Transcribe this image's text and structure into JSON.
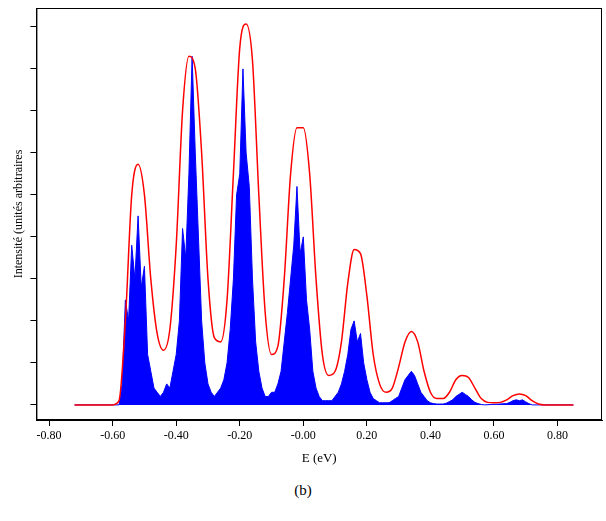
{
  "chart_data": {
    "type": "line",
    "x_label": "E (eV)",
    "y_label": "Intensité (unités arbitraires",
    "caption": "(b)",
    "xlim": [
      -0.84,
      0.94
    ],
    "xticks": [
      {
        "value": -0.8,
        "label": "-0.80"
      },
      {
        "value": -0.6,
        "label": "-0.60"
      },
      {
        "value": -0.4,
        "label": "-0.40"
      },
      {
        "value": -0.2,
        "label": "-0.20"
      },
      {
        "value": 0,
        "label": "-0.00"
      },
      {
        "value": 0.2,
        "label": "0.20"
      },
      {
        "value": 0.4,
        "label": "0.40"
      },
      {
        "value": 0.6,
        "label": "0.60"
      },
      {
        "value": 0.8,
        "label": "0.80"
      }
    ],
    "ylim": [
      -0.036,
      0.945
    ],
    "yticks": [
      0,
      0.1,
      0.2,
      0.3,
      0.4,
      0.5,
      0.6,
      0.7,
      0.8,
      0.9
    ],
    "tick_labels": "x",
    "grid": false,
    "series": [
      {
        "type": "area",
        "color": "#0000ff",
        "x": [
          -0.72,
          -0.58,
          -0.57,
          -0.56,
          -0.55,
          -0.54,
          -0.53,
          -0.52,
          -0.51,
          -0.5,
          -0.49,
          -0.48,
          -0.47,
          -0.46,
          -0.45,
          -0.44,
          -0.43,
          -0.42,
          -0.41,
          -0.4,
          -0.39,
          -0.38,
          -0.37,
          -0.36,
          -0.35,
          -0.34,
          -0.33,
          -0.32,
          -0.31,
          -0.3,
          -0.29,
          -0.28,
          -0.27,
          -0.26,
          -0.25,
          -0.24,
          -0.23,
          -0.22,
          -0.21,
          -0.2,
          -0.19,
          -0.18,
          -0.17,
          -0.16,
          -0.15,
          -0.14,
          -0.13,
          -0.12,
          -0.11,
          -0.1,
          -0.09,
          -0.08,
          -0.07,
          -0.06,
          -0.05,
          -0.04,
          -0.03,
          -0.02,
          -0.01,
          0,
          0.01,
          0.02,
          0.03,
          0.04,
          0.05,
          0.06,
          0.07,
          0.08,
          0.09,
          0.1,
          0.11,
          0.12,
          0.13,
          0.14,
          0.15,
          0.16,
          0.17,
          0.18,
          0.19,
          0.2,
          0.21,
          0.22,
          0.23,
          0.24,
          0.25,
          0.26,
          0.27,
          0.28,
          0.29,
          0.3,
          0.31,
          0.32,
          0.33,
          0.34,
          0.35,
          0.36,
          0.37,
          0.38,
          0.39,
          0.4,
          0.41,
          0.42,
          0.43,
          0.44,
          0.45,
          0.46,
          0.47,
          0.48,
          0.49,
          0.5,
          0.51,
          0.52,
          0.53,
          0.54,
          0.55,
          0.56,
          0.57,
          0.64,
          0.65,
          0.66,
          0.67,
          0.68,
          0.69,
          0.7,
          0.71,
          0.72,
          0.85
        ],
        "values": [
          0,
          0,
          0.05,
          0.25,
          0.2,
          0.38,
          0.3,
          0.45,
          0.28,
          0.33,
          0.12,
          0.08,
          0.04,
          0.03,
          0.02,
          0.03,
          0.05,
          0.04,
          0.08,
          0.12,
          0.2,
          0.42,
          0.35,
          0.55,
          0.83,
          0.6,
          0.4,
          0.2,
          0.1,
          0.05,
          0.03,
          0.02,
          0.03,
          0.04,
          0.06,
          0.1,
          0.18,
          0.3,
          0.5,
          0.55,
          0.8,
          0.6,
          0.52,
          0.3,
          0.15,
          0.08,
          0.04,
          0.02,
          0.02,
          0.03,
          0.03,
          0.05,
          0.08,
          0.15,
          0.22,
          0.3,
          0.38,
          0.52,
          0.36,
          0.4,
          0.25,
          0.18,
          0.08,
          0.04,
          0.02,
          0.01,
          0.01,
          0.01,
          0.01,
          0.02,
          0.03,
          0.05,
          0.08,
          0.12,
          0.18,
          0.2,
          0.15,
          0.17,
          0.1,
          0.06,
          0.03,
          0.015,
          0.01,
          0.005,
          0.005,
          0.005,
          0.005,
          0.01,
          0.015,
          0.02,
          0.04,
          0.06,
          0.07,
          0.08,
          0.07,
          0.05,
          0.03,
          0.02,
          0.01,
          0.005,
          0.003,
          0.002,
          0.002,
          0.002,
          0.004,
          0.008,
          0.012,
          0.02,
          0.025,
          0.03,
          0.025,
          0.02,
          0.012,
          0.006,
          0.003,
          0.001,
          0,
          0.003,
          0.006,
          0.01,
          0.012,
          0.01,
          0.012,
          0.007,
          0.003,
          0,
          0
        ]
      },
      {
        "type": "line",
        "color": "#ff0000",
        "x": [
          -0.72,
          -0.6,
          -0.58,
          -0.56,
          -0.54,
          -0.52,
          -0.5,
          -0.48,
          -0.46,
          -0.44,
          -0.42,
          -0.4,
          -0.38,
          -0.36,
          -0.34,
          -0.32,
          -0.3,
          -0.28,
          -0.26,
          -0.24,
          -0.22,
          -0.2,
          -0.18,
          -0.16,
          -0.14,
          -0.12,
          -0.1,
          -0.08,
          -0.06,
          -0.04,
          -0.02,
          0,
          0.02,
          0.04,
          0.06,
          0.08,
          0.1,
          0.12,
          0.14,
          0.16,
          0.18,
          0.2,
          0.22,
          0.24,
          0.26,
          0.28,
          0.3,
          0.32,
          0.34,
          0.36,
          0.38,
          0.4,
          0.42,
          0.44,
          0.46,
          0.48,
          0.5,
          0.52,
          0.54,
          0.56,
          0.58,
          0.6,
          0.62,
          0.64,
          0.66,
          0.68,
          0.7,
          0.72,
          0.74,
          0.76,
          0.85
        ],
        "values": [
          0,
          0,
          0.01,
          0.2,
          0.5,
          0.573,
          0.5,
          0.3,
          0.17,
          0.13,
          0.18,
          0.38,
          0.7,
          0.83,
          0.8,
          0.6,
          0.3,
          0.16,
          0.15,
          0.25,
          0.55,
          0.85,
          0.907,
          0.82,
          0.5,
          0.22,
          0.12,
          0.14,
          0.3,
          0.55,
          0.66,
          0.66,
          0.55,
          0.3,
          0.12,
          0.07,
          0.08,
          0.15,
          0.29,
          0.37,
          0.36,
          0.26,
          0.12,
          0.05,
          0.03,
          0.04,
          0.09,
          0.15,
          0.175,
          0.15,
          0.08,
          0.03,
          0.015,
          0.015,
          0.03,
          0.06,
          0.07,
          0.065,
          0.04,
          0.015,
          0.006,
          0.005,
          0.006,
          0.012,
          0.022,
          0.026,
          0.022,
          0.01,
          0.002,
          0,
          0
        ]
      }
    ]
  }
}
